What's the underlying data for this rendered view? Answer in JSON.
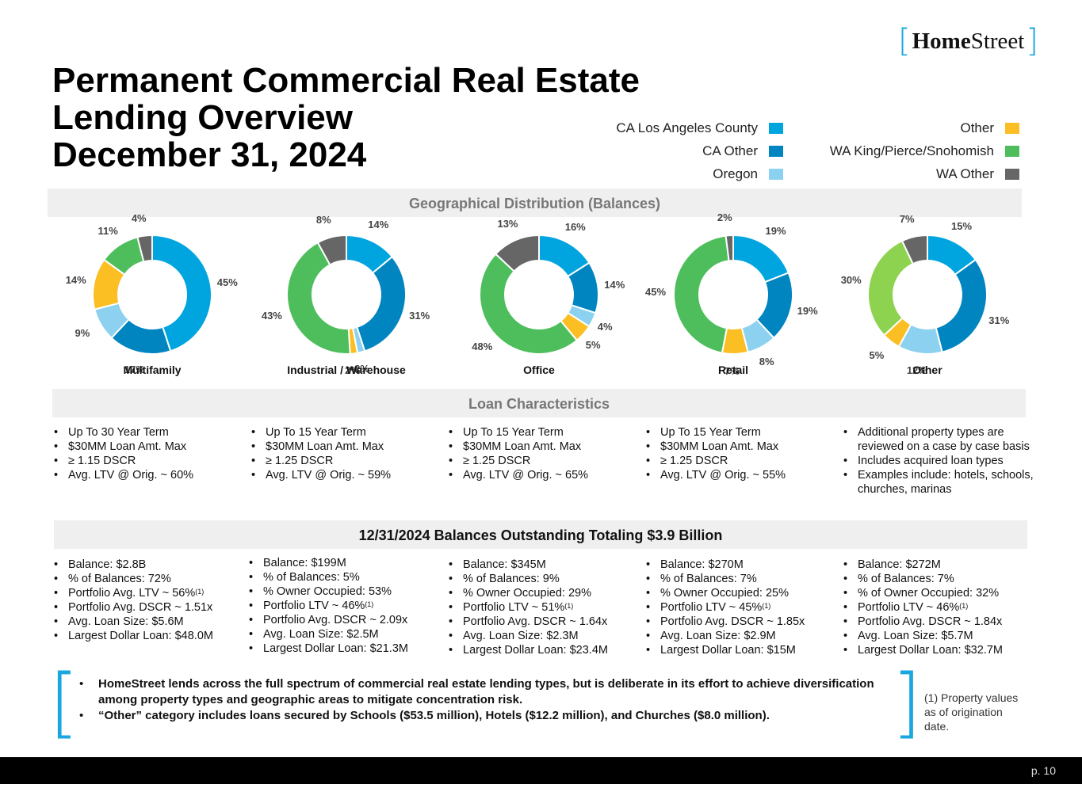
{
  "logo": {
    "brand_bold": "Home",
    "brand_regular": "Street"
  },
  "title": {
    "line1": "Permanent Commercial Real Estate",
    "line2": "Lending Overview",
    "line3": "December 31, 2024"
  },
  "legend": {
    "left": [
      {
        "label": "CA Los Angeles County",
        "color": "#00a5e0"
      },
      {
        "label": "CA Other",
        "color": "#0085c0"
      },
      {
        "label": "Oregon",
        "color": "#8dd1f0"
      }
    ],
    "right": [
      {
        "label": "Other",
        "color": "#fbbf24"
      },
      {
        "label": "WA King/Pierce/Snohomish",
        "color": "#4ebe5c"
      },
      {
        "label": "WA Other",
        "color": "#666666"
      }
    ]
  },
  "sections": {
    "geo": "Geographical Distribution (Balances)",
    "loan": "Loan Characteristics",
    "balances": "12/31/2024 Balances Outstanding Totaling $3.9 Billion"
  },
  "chart_data": [
    {
      "type": "pie",
      "title": "Multifamily",
      "categories": [
        "CA Los Angeles County",
        "CA Other",
        "Oregon",
        "Other",
        "WA King/Pierce/Snohomish",
        "WA Other"
      ],
      "values": [
        45,
        17,
        9,
        14,
        11,
        4
      ],
      "labels": [
        "45%",
        "17%",
        "9%",
        "14%",
        "11%",
        "4%"
      ]
    },
    {
      "type": "pie",
      "title": "Industrial / Warehouse",
      "categories": [
        "CA Los Angeles County",
        "CA Other",
        "Oregon",
        "Other",
        "WA King/Pierce/Snohomish",
        "WA Other"
      ],
      "values": [
        14,
        31,
        2,
        2,
        43,
        8
      ],
      "labels": [
        "14%",
        "31%",
        "2%",
        "2%",
        "43%",
        "8%"
      ]
    },
    {
      "type": "pie",
      "title": "Office",
      "categories": [
        "CA Los Angeles County",
        "CA Other",
        "Oregon",
        "Other",
        "WA King/Pierce/Snohomish",
        "WA Other"
      ],
      "values": [
        16,
        14,
        4,
        5,
        48,
        13
      ],
      "labels": [
        "16%",
        "14%",
        "4%",
        "5%",
        "48%",
        "13%"
      ]
    },
    {
      "type": "pie",
      "title": "Retail",
      "categories": [
        "CA Los Angeles County",
        "CA Other",
        "Oregon",
        "Other",
        "WA King/Pierce/Snohomish",
        "WA Other"
      ],
      "values": [
        19,
        19,
        8,
        7,
        45,
        2
      ],
      "labels": [
        "19%",
        "19%",
        "8%",
        "7%",
        "45%",
        "2%"
      ]
    },
    {
      "type": "pie",
      "title": "Other",
      "categories": [
        "CA Los Angeles County",
        "CA Other",
        "Oregon",
        "Other",
        "WA King/Pierce/Snohomish",
        "WA Other"
      ],
      "values": [
        15,
        31,
        12,
        5,
        30,
        7
      ],
      "labels": [
        "15%",
        "31%",
        "12%",
        "5%",
        "30%",
        "7%"
      ]
    }
  ],
  "loan_characteristics": [
    [
      "Up To 30 Year Term",
      "$30MM Loan Amt. Max",
      "≥ 1.15 DSCR",
      "Avg. LTV @ Orig. ~ 60%"
    ],
    [
      "Up To 15 Year Term",
      "$30MM Loan Amt. Max",
      "≥ 1.25 DSCR",
      "Avg. LTV @ Orig. ~  59%"
    ],
    [
      "Up To 15 Year Term",
      "$30MM Loan Amt. Max",
      "≥ 1.25 DSCR",
      "Avg. LTV @ Orig. ~ 65%"
    ],
    [
      "Up To 15 Year Term",
      "$30MM Loan Amt. Max",
      "≥ 1.25 DSCR",
      "Avg. LTV @ Orig. ~ 55%"
    ],
    [
      "Additional property types are reviewed on a case by case basis",
      "Includes acquired loan types",
      "Examples include:  hotels, schools, churches, marinas"
    ]
  ],
  "balances": [
    [
      {
        "text": "Balance:  $2.8B"
      },
      {
        "text": "% of Balances: 72%"
      },
      {
        "text": "Portfolio Avg. LTV  ~ 56%",
        "sup": "(1)"
      },
      {
        "text": "Portfolio Avg. DSCR ~ 1.51x"
      },
      {
        "text": "Avg. Loan Size:  $5.6M"
      },
      {
        "text": "Largest Dollar Loan: $48.0M"
      }
    ],
    [
      {
        "text": "Balance:  $199M"
      },
      {
        "text": "% of Balances: 5%"
      },
      {
        "text": "% Owner Occupied:  53%"
      },
      {
        "text": "Portfolio LTV ~ 46%",
        "sup": "(1)"
      },
      {
        "text": "Portfolio Avg. DSCR ~ 2.09x"
      },
      {
        "text": "Avg. Loan Size:  $2.5M"
      },
      {
        "text": "Largest Dollar Loan: $21.3M"
      }
    ],
    [
      {
        "text": "Balance:  $345M"
      },
      {
        "text": "% of Balances: 9%"
      },
      {
        "text": "% Owner Occupied:  29%"
      },
      {
        "text": "Portfolio LTV ~ 51%",
        "sup": "(1)"
      },
      {
        "text": "Portfolio Avg. DSCR ~ 1.64x"
      },
      {
        "text": "Avg. Loan Size:  $2.3M"
      },
      {
        "text": "Largest Dollar Loan: $23.4M"
      }
    ],
    [
      {
        "text": "Balance:  $270M"
      },
      {
        "text": "% of Balances: 7%"
      },
      {
        "text": "% Owner Occupied:  25%"
      },
      {
        "text": "Portfolio LTV ~ 45%",
        "sup": "(1)"
      },
      {
        "text": "Portfolio Avg. DSCR ~ 1.85x"
      },
      {
        "text": "Avg. Loan Size:  $2.9M"
      },
      {
        "text": "Largest Dollar Loan: $15M"
      }
    ],
    [
      {
        "text": "Balance:  $272M"
      },
      {
        "text": "% of Balances: 7%"
      },
      {
        "text": "% of Owner Occupied:  32%"
      },
      {
        "text": "Portfolio LTV ~ 46%",
        "sup": "(1)"
      },
      {
        "text": "Portfolio Avg. DSCR ~ 1.84x"
      },
      {
        "text": "Avg. Loan Size:  $5.7M"
      },
      {
        "text": "Largest Dollar Loan: $32.7M"
      }
    ]
  ],
  "notes": [
    "HomeStreet lends across the full spectrum of commercial real estate lending types, but is deliberate in its effort to achieve diversification among property types and geographic areas to mitigate concentration risk.",
    "“Other” category includes loans secured by Schools ($53.5 million), Hotels ($12.2 million), and Churches ($8.0 million)."
  ],
  "footnote": "(1) Property values as of origination date.",
  "page_number": "p. 10",
  "bracket_open": "[",
  "bracket_close": "]",
  "logo_bracket_open": "[",
  "logo_bracket_close": "]"
}
